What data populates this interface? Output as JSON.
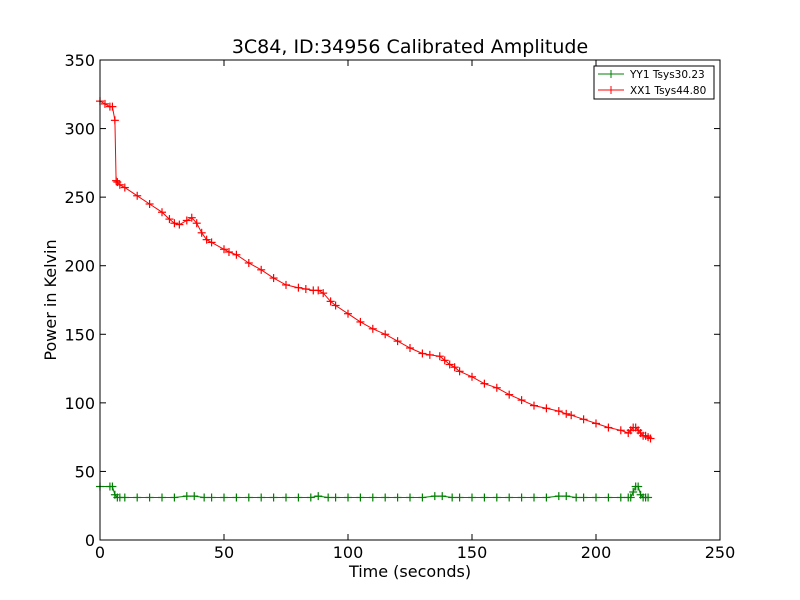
{
  "chart_data": {
    "type": "line",
    "title": "3C84, ID:34956 Calibrated Amplitude",
    "xlabel": "Time (seconds)",
    "ylabel": "Power in Kelvin",
    "xlim": [
      0,
      250
    ],
    "ylim": [
      0,
      350
    ],
    "xticks": [
      0,
      50,
      100,
      150,
      200,
      250
    ],
    "yticks": [
      0,
      50,
      100,
      150,
      200,
      250,
      300,
      350
    ],
    "grid": false,
    "legend_position": "top-right",
    "marker": "+",
    "series": [
      {
        "name": "YY1 Tsys30.23",
        "color": "#008000",
        "x": [
          0,
          4,
          5,
          6,
          7,
          8,
          10,
          15,
          20,
          25,
          30,
          35,
          38,
          42,
          45,
          50,
          55,
          60,
          65,
          70,
          75,
          80,
          85,
          88,
          92,
          95,
          100,
          105,
          110,
          115,
          120,
          125,
          130,
          135,
          138,
          142,
          145,
          150,
          155,
          160,
          165,
          170,
          175,
          180,
          185,
          188,
          192,
          195,
          200,
          205,
          210,
          213,
          214,
          215,
          216,
          217,
          218,
          219,
          220,
          221
        ],
        "y": [
          39,
          39,
          39,
          33,
          31,
          31,
          31,
          31,
          31,
          31,
          31,
          32,
          32,
          31,
          31,
          31,
          31,
          31,
          31,
          31,
          31,
          31,
          31,
          32,
          31,
          31,
          31,
          31,
          31,
          31,
          31,
          31,
          31,
          32,
          32,
          31,
          31,
          31,
          31,
          31,
          31,
          31,
          31,
          31,
          32,
          32,
          31,
          31,
          31,
          31,
          31,
          31,
          31,
          35,
          39,
          39,
          33,
          31,
          31,
          31
        ]
      },
      {
        "name": "XX1 Tsys44.80",
        "color": "#ff0000",
        "x": [
          0,
          2,
          4,
          5,
          6,
          6.5,
          7,
          8,
          10,
          15,
          20,
          25,
          28,
          30,
          32,
          35,
          37,
          39,
          41,
          43,
          45,
          50,
          52,
          55,
          60,
          65,
          70,
          75,
          80,
          83,
          86,
          88,
          90,
          93,
          95,
          100,
          105,
          110,
          115,
          120,
          125,
          130,
          133,
          137,
          139,
          141,
          143,
          145,
          150,
          155,
          160,
          165,
          170,
          175,
          180,
          185,
          188,
          190,
          195,
          200,
          205,
          210,
          213,
          214,
          215,
          216,
          217,
          218,
          219,
          220,
          221,
          222
        ],
        "y": [
          320,
          318,
          316,
          316,
          306,
          262,
          261,
          259,
          257,
          251,
          245,
          239,
          234,
          231,
          230,
          233,
          235,
          231,
          224,
          219,
          217,
          212,
          210,
          208,
          202,
          197,
          191,
          186,
          184,
          183,
          182,
          182,
          180,
          174,
          171,
          165,
          159,
          154,
          150,
          145,
          140,
          136,
          135,
          134,
          131,
          128,
          126,
          123,
          119,
          114,
          111,
          106,
          102,
          98,
          96,
          94,
          92,
          91,
          88,
          85,
          82,
          80,
          78,
          80,
          82,
          82,
          80,
          78,
          76,
          76,
          75,
          74
        ]
      }
    ]
  }
}
